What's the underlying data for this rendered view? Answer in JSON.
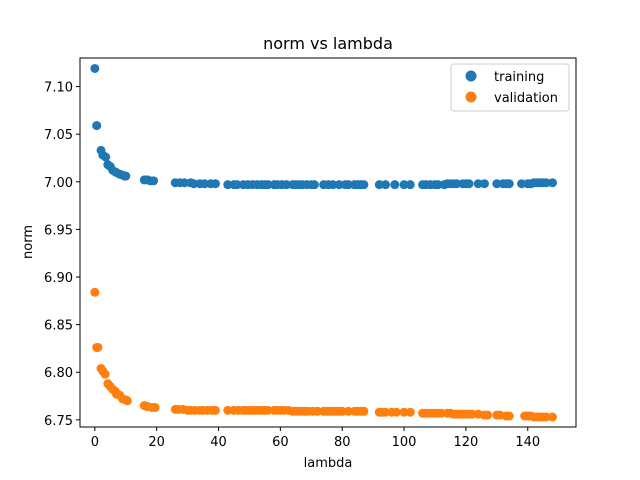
{
  "chart_data": {
    "type": "scatter",
    "title": "norm vs lambda",
    "xlabel": "lambda",
    "ylabel": "norm",
    "xlim": [
      -4.8,
      155.6
    ],
    "ylim": [
      6.7425,
      7.13
    ],
    "xticks": [
      0,
      20,
      40,
      60,
      80,
      100,
      120,
      140
    ],
    "yticks": [
      6.75,
      6.8,
      6.85,
      6.9,
      6.95,
      7.0,
      7.05,
      7.1
    ],
    "ytick_labels": [
      "6.75",
      "6.80",
      "6.85",
      "6.90",
      "6.95",
      "7.00",
      "7.05",
      "7.10"
    ],
    "grid": false,
    "legend_position": "top-right",
    "series": [
      {
        "name": "training",
        "color": "#1f77b4",
        "points": [
          [
            0.0,
            7.119
          ],
          [
            0.6,
            7.059
          ],
          [
            2.0,
            7.033
          ],
          [
            2.6,
            7.028
          ],
          [
            3.5,
            7.026
          ],
          [
            4.2,
            7.018
          ],
          [
            5.0,
            7.016
          ],
          [
            5.8,
            7.012
          ],
          [
            6.8,
            7.01
          ],
          [
            8.0,
            7.008
          ],
          [
            9.0,
            7.007
          ],
          [
            9.6,
            7.006
          ],
          [
            10.0,
            7.006
          ],
          [
            16.0,
            7.002
          ],
          [
            17.0,
            7.002
          ],
          [
            18.0,
            7.001
          ],
          [
            19.0,
            7.001
          ],
          [
            26.0,
            6.999
          ],
          [
            27.5,
            6.999
          ],
          [
            29.0,
            6.999
          ],
          [
            31.0,
            6.999
          ],
          [
            32.0,
            6.998
          ],
          [
            34.0,
            6.998
          ],
          [
            35.5,
            6.998
          ],
          [
            37.5,
            6.998
          ],
          [
            39.0,
            6.998
          ],
          [
            43.0,
            6.997
          ],
          [
            45.0,
            6.997
          ],
          [
            46.0,
            6.997
          ],
          [
            48.0,
            6.997
          ],
          [
            49.5,
            6.997
          ],
          [
            51.0,
            6.997
          ],
          [
            52.5,
            6.997
          ],
          [
            54.0,
            6.997
          ],
          [
            55.0,
            6.997
          ],
          [
            56.0,
            6.997
          ],
          [
            58.0,
            6.997
          ],
          [
            59.0,
            6.997
          ],
          [
            60.5,
            6.997
          ],
          [
            62.0,
            6.997
          ],
          [
            64.0,
            6.997
          ],
          [
            65.0,
            6.997
          ],
          [
            66.0,
            6.997
          ],
          [
            67.0,
            6.997
          ],
          [
            68.5,
            6.997
          ],
          [
            70.0,
            6.997
          ],
          [
            71.0,
            6.997
          ],
          [
            74.0,
            6.997
          ],
          [
            75.5,
            6.997
          ],
          [
            77.0,
            6.997
          ],
          [
            79.0,
            6.997
          ],
          [
            81.0,
            6.997
          ],
          [
            82.0,
            6.997
          ],
          [
            84.0,
            6.997
          ],
          [
            85.0,
            6.997
          ],
          [
            86.0,
            6.997
          ],
          [
            87.0,
            6.997
          ],
          [
            92.0,
            6.997
          ],
          [
            94.0,
            6.997
          ],
          [
            97.0,
            6.997
          ],
          [
            100.0,
            6.997
          ],
          [
            102.0,
            6.997
          ],
          [
            106.0,
            6.997
          ],
          [
            107.0,
            6.997
          ],
          [
            108.5,
            6.997
          ],
          [
            110.0,
            6.997
          ],
          [
            111.0,
            6.997
          ],
          [
            113.0,
            6.997
          ],
          [
            114.0,
            6.998
          ],
          [
            115.0,
            6.998
          ],
          [
            116.0,
            6.998
          ],
          [
            117.0,
            6.998
          ],
          [
            119.0,
            6.998
          ],
          [
            120.0,
            6.998
          ],
          [
            121.0,
            6.998
          ],
          [
            124.0,
            6.998
          ],
          [
            126.0,
            6.998
          ],
          [
            130.0,
            6.998
          ],
          [
            132.0,
            6.998
          ],
          [
            133.0,
            6.998
          ],
          [
            134.0,
            6.998
          ],
          [
            138.0,
            6.998
          ],
          [
            140.0,
            6.998
          ],
          [
            141.0,
            6.998
          ],
          [
            142.0,
            6.999
          ],
          [
            143.0,
            6.999
          ],
          [
            144.0,
            6.999
          ],
          [
            145.0,
            6.999
          ],
          [
            146.0,
            6.999
          ],
          [
            148.0,
            6.999
          ]
        ]
      },
      {
        "name": "validation",
        "color": "#ff7f0e",
        "points": [
          [
            0.0,
            6.884
          ],
          [
            0.6,
            6.826
          ],
          [
            1.0,
            6.826
          ],
          [
            2.0,
            6.804
          ],
          [
            2.6,
            6.801
          ],
          [
            3.3,
            6.798
          ],
          [
            4.2,
            6.788
          ],
          [
            5.0,
            6.785
          ],
          [
            5.8,
            6.782
          ],
          [
            6.6,
            6.78
          ],
          [
            7.0,
            6.777
          ],
          [
            8.0,
            6.776
          ],
          [
            9.0,
            6.772
          ],
          [
            10.0,
            6.771
          ],
          [
            10.5,
            6.77
          ],
          [
            16.0,
            6.765
          ],
          [
            17.0,
            6.764
          ],
          [
            18.5,
            6.763
          ],
          [
            19.5,
            6.763
          ],
          [
            26.0,
            6.761
          ],
          [
            27.0,
            6.761
          ],
          [
            28.5,
            6.761
          ],
          [
            30.0,
            6.76
          ],
          [
            31.0,
            6.76
          ],
          [
            32.5,
            6.76
          ],
          [
            34.0,
            6.76
          ],
          [
            35.0,
            6.76
          ],
          [
            36.5,
            6.76
          ],
          [
            38.0,
            6.76
          ],
          [
            39.0,
            6.76
          ],
          [
            43.0,
            6.76
          ],
          [
            45.0,
            6.76
          ],
          [
            46.5,
            6.76
          ],
          [
            48.0,
            6.76
          ],
          [
            49.0,
            6.76
          ],
          [
            50.0,
            6.76
          ],
          [
            51.0,
            6.76
          ],
          [
            52.0,
            6.76
          ],
          [
            53.0,
            6.76
          ],
          [
            54.0,
            6.76
          ],
          [
            55.0,
            6.76
          ],
          [
            56.0,
            6.76
          ],
          [
            58.0,
            6.76
          ],
          [
            59.0,
            6.76
          ],
          [
            60.0,
            6.76
          ],
          [
            61.0,
            6.76
          ],
          [
            62.5,
            6.76
          ],
          [
            64.0,
            6.759
          ],
          [
            65.0,
            6.759
          ],
          [
            66.0,
            6.759
          ],
          [
            67.0,
            6.759
          ],
          [
            68.0,
            6.759
          ],
          [
            69.0,
            6.759
          ],
          [
            70.5,
            6.759
          ],
          [
            72.0,
            6.759
          ],
          [
            74.0,
            6.759
          ],
          [
            75.0,
            6.759
          ],
          [
            76.0,
            6.759
          ],
          [
            77.0,
            6.759
          ],
          [
            78.0,
            6.759
          ],
          [
            79.0,
            6.759
          ],
          [
            80.0,
            6.759
          ],
          [
            82.0,
            6.759
          ],
          [
            84.0,
            6.759
          ],
          [
            85.0,
            6.759
          ],
          [
            86.0,
            6.759
          ],
          [
            87.0,
            6.759
          ],
          [
            92.0,
            6.758
          ],
          [
            93.0,
            6.758
          ],
          [
            94.0,
            6.758
          ],
          [
            96.0,
            6.758
          ],
          [
            97.5,
            6.758
          ],
          [
            100.0,
            6.758
          ],
          [
            102.0,
            6.758
          ],
          [
            106.0,
            6.757
          ],
          [
            107.0,
            6.757
          ],
          [
            108.0,
            6.757
          ],
          [
            109.0,
            6.757
          ],
          [
            110.0,
            6.757
          ],
          [
            111.0,
            6.757
          ],
          [
            112.0,
            6.757
          ],
          [
            114.0,
            6.757
          ],
          [
            115.0,
            6.757
          ],
          [
            116.0,
            6.756
          ],
          [
            117.0,
            6.756
          ],
          [
            118.0,
            6.756
          ],
          [
            119.0,
            6.756
          ],
          [
            120.0,
            6.756
          ],
          [
            121.0,
            6.756
          ],
          [
            122.0,
            6.756
          ],
          [
            124.0,
            6.756
          ],
          [
            126.0,
            6.755
          ],
          [
            127.0,
            6.755
          ],
          [
            130.0,
            6.755
          ],
          [
            131.0,
            6.755
          ],
          [
            133.0,
            6.754
          ],
          [
            134.0,
            6.754
          ],
          [
            139.0,
            6.754
          ],
          [
            140.0,
            6.754
          ],
          [
            141.0,
            6.754
          ],
          [
            142.0,
            6.753
          ],
          [
            143.0,
            6.753
          ],
          [
            144.0,
            6.753
          ],
          [
            145.0,
            6.753
          ],
          [
            146.0,
            6.753
          ],
          [
            148.0,
            6.753
          ]
        ]
      }
    ]
  }
}
